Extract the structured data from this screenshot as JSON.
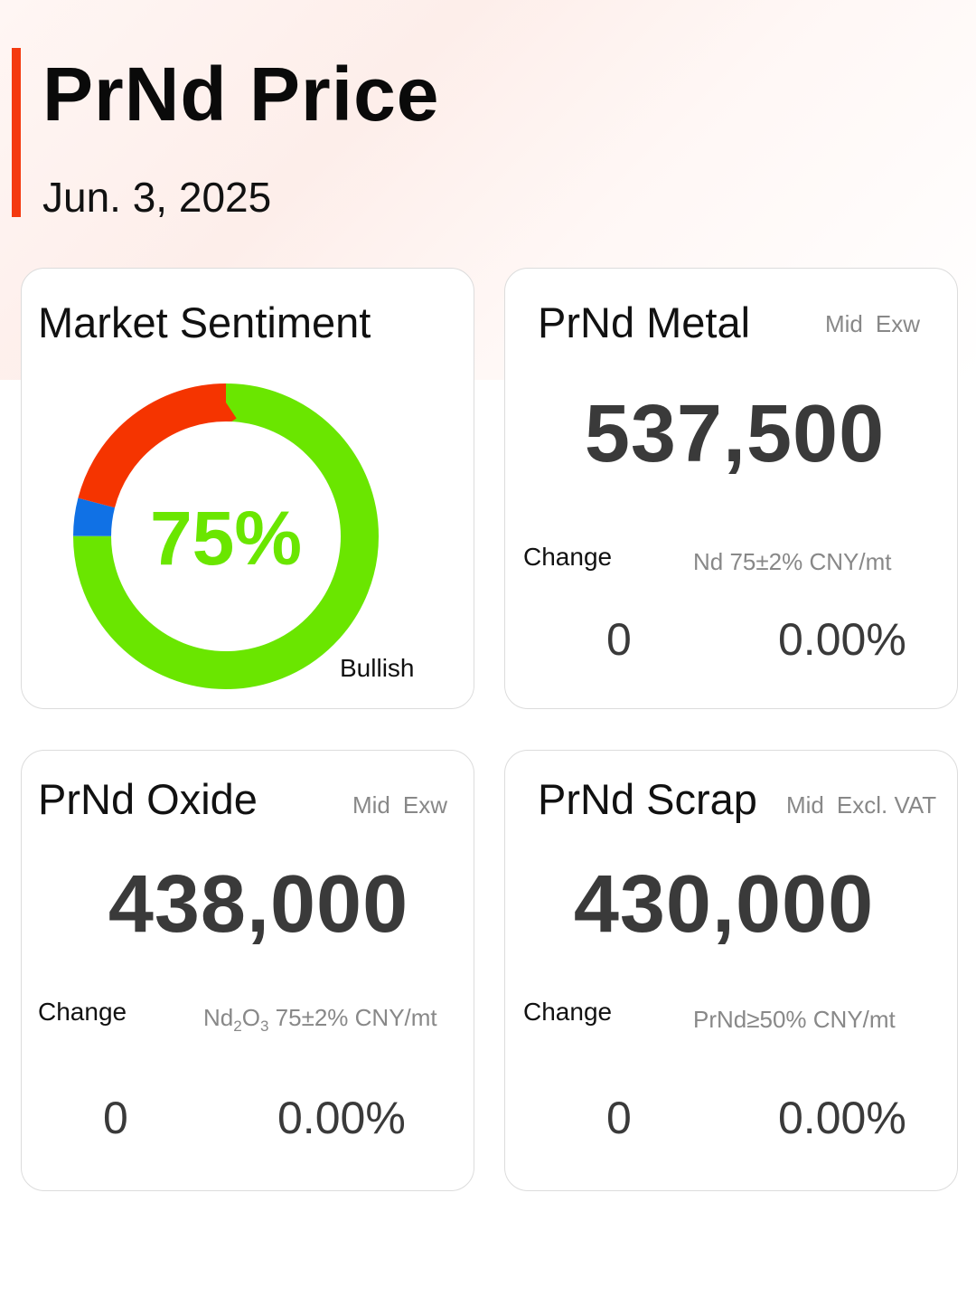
{
  "header": {
    "title": "PrNd Price",
    "date": "Jun. 3, 2025",
    "accent_color": "#f43a10"
  },
  "sentiment": {
    "title": "Market Sentiment",
    "percent_label": "75%",
    "label": "Bullish",
    "chart_data": {
      "type": "pie",
      "segments": [
        {
          "value": 75,
          "color": "#6ae600"
        },
        {
          "value": 4,
          "color": "#1071e5"
        },
        {
          "value": 21,
          "color": "#f53400"
        }
      ]
    }
  },
  "metal": {
    "title": "PrNd Metal",
    "tag1": "Mid",
    "tag2": "Exw",
    "price": "537,500",
    "change_label": "Change",
    "spec": "Nd 75±2% CNY/mt",
    "change_abs": "0",
    "change_pct": "0.00%"
  },
  "oxide": {
    "title": "PrNd Oxide",
    "tag1": "Mid",
    "tag2": "Exw",
    "price": "438,000",
    "change_label": "Change",
    "spec_prefix": "Nd",
    "spec_sub1": "2",
    "spec_mid": "O",
    "spec_sub2": "3",
    "spec_suffix": " 75±2% CNY/mt",
    "change_abs": "0",
    "change_pct": "0.00%"
  },
  "scrap": {
    "title": "PrNd Scrap",
    "tag1": "Mid",
    "tag2": "Excl. VAT",
    "price": "430,000",
    "change_label": "Change",
    "spec": "PrNd≥50% CNY/mt",
    "change_abs": "0",
    "change_pct": "0.00%"
  }
}
